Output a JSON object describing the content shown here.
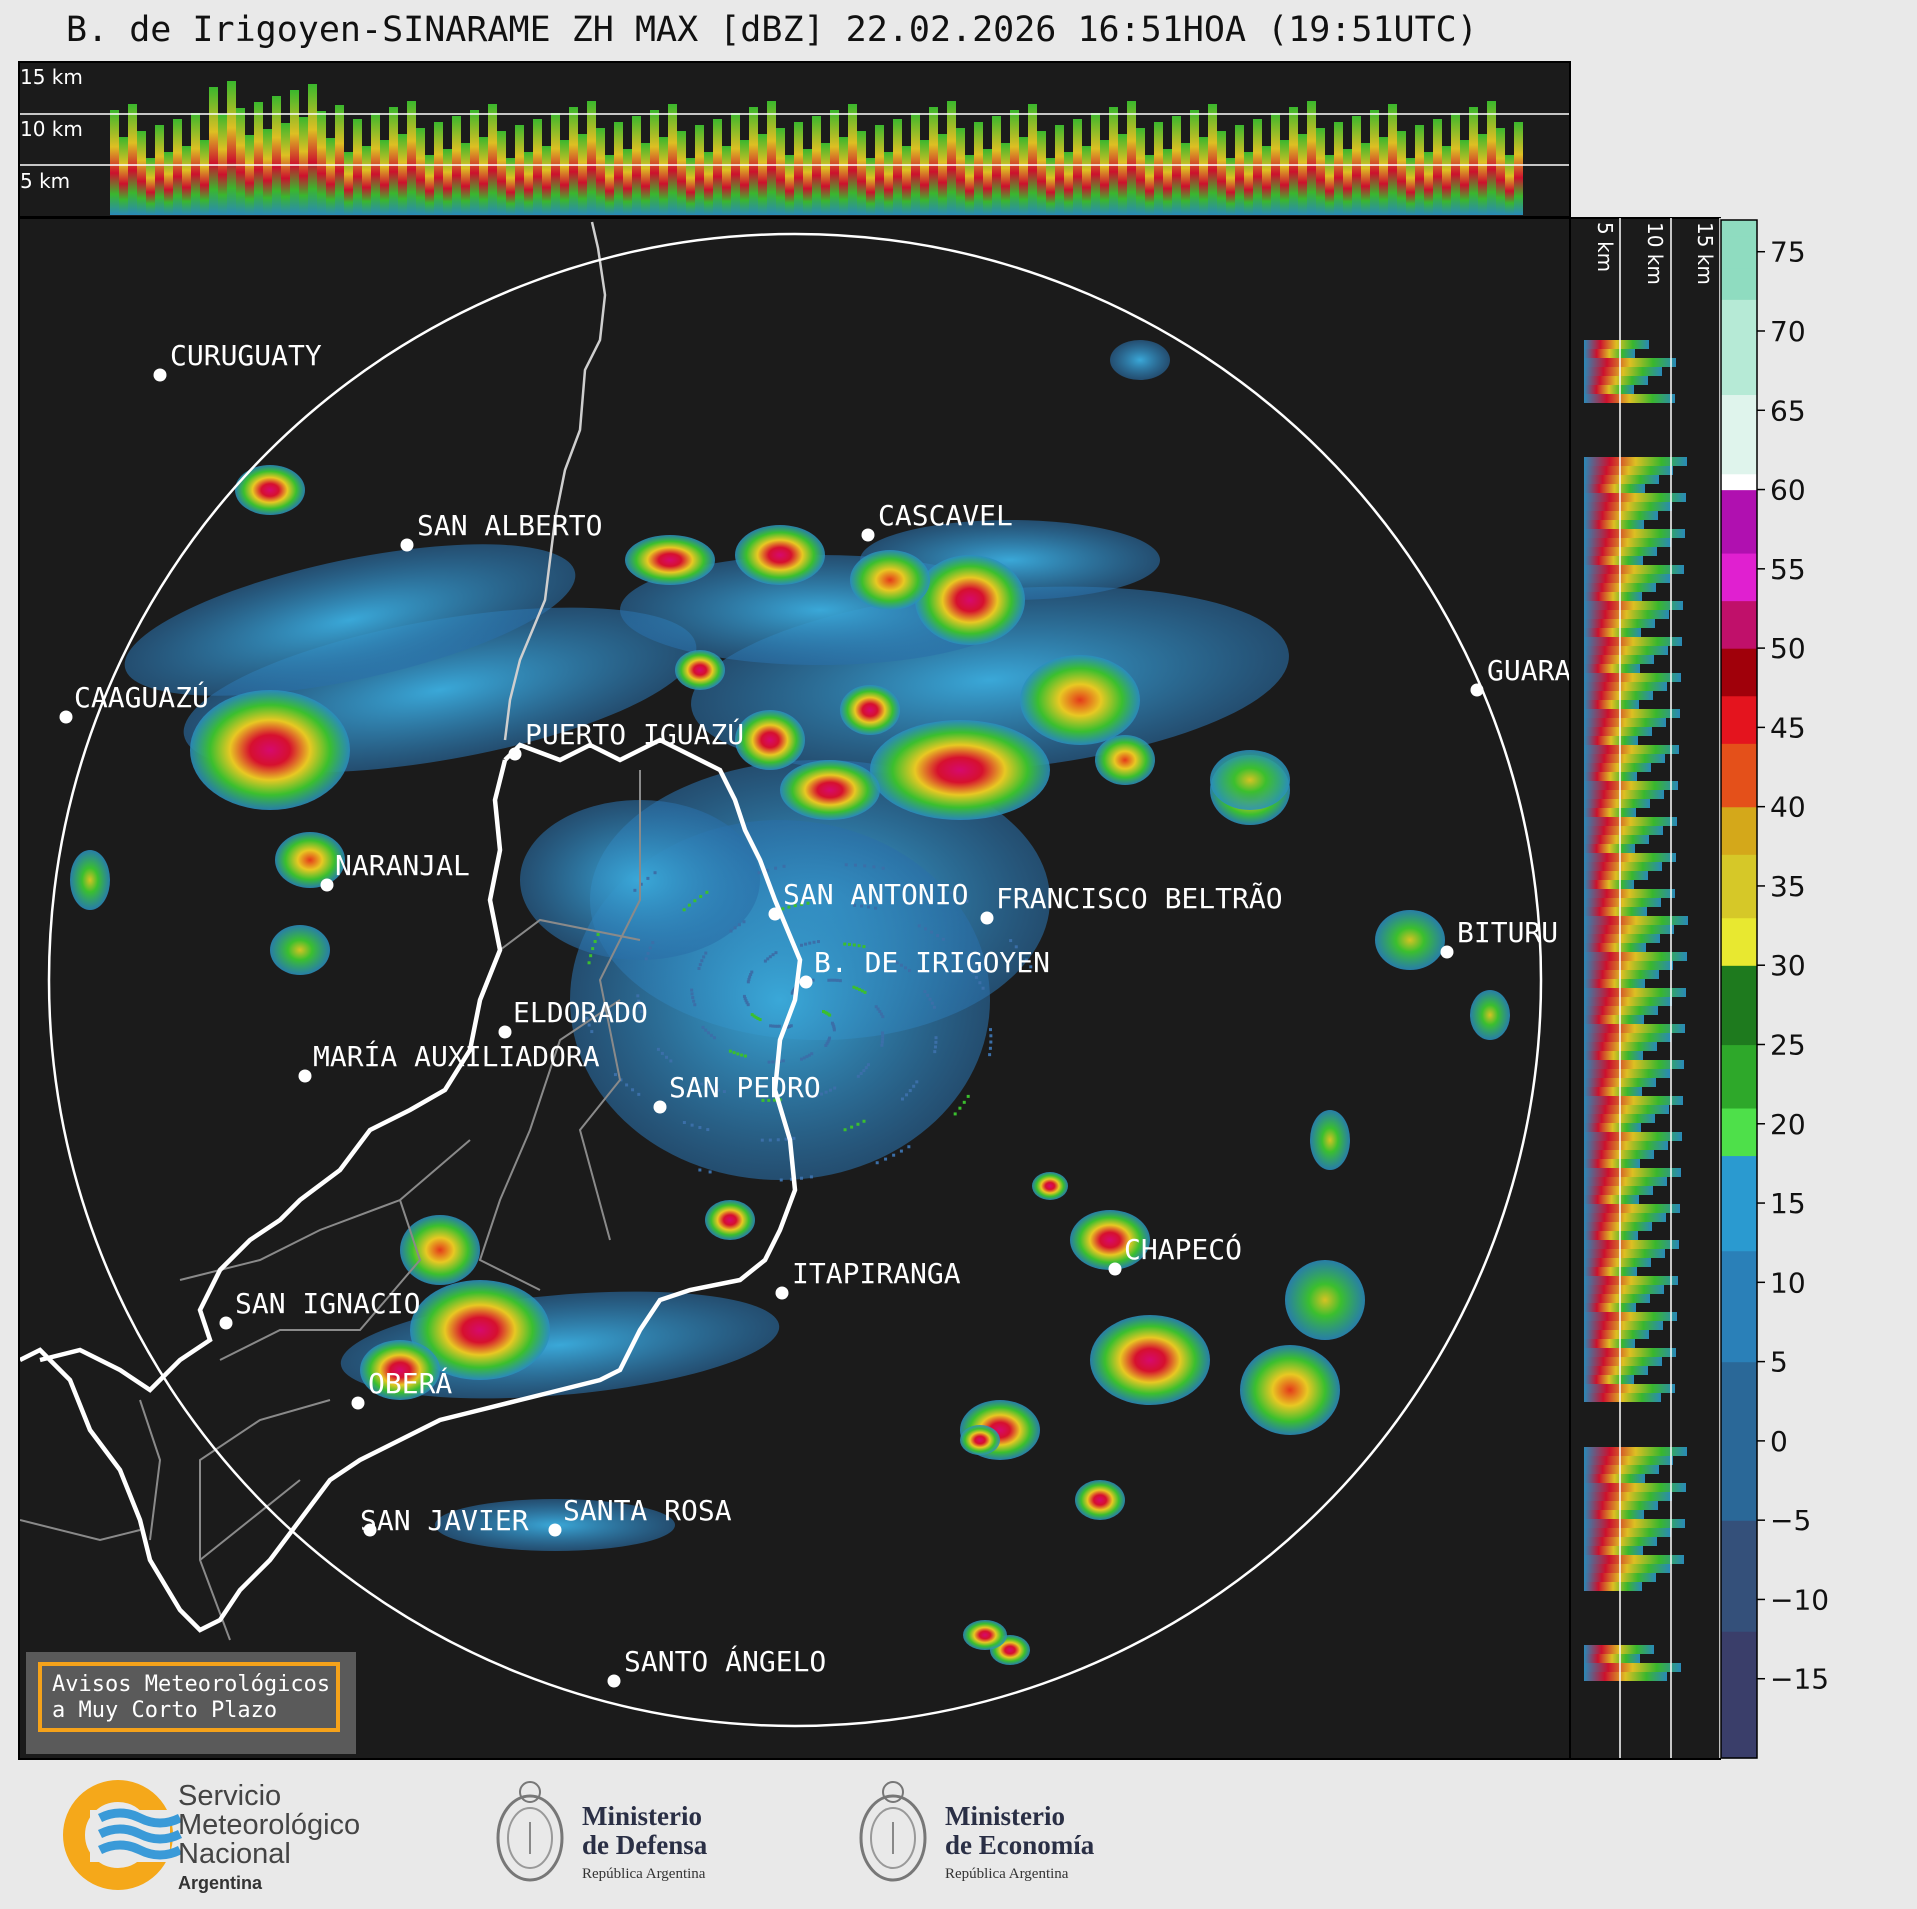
{
  "title": "B. de Irigoyen-SINARAME ZH MAX [dBZ] 22.02.2026 16:51HOA (19:51UTC)",
  "height_labels_top": [
    "15 km",
    "10 km",
    "5 km"
  ],
  "height_labels_side": [
    "5 km",
    "10 km",
    "15 km"
  ],
  "colorbar": {
    "ticks": [
      "75",
      "70",
      "65",
      "60",
      "55",
      "50",
      "45",
      "40",
      "35",
      "30",
      "25",
      "20",
      "15",
      "10",
      "5",
      "0",
      "−5",
      "−10",
      "−15"
    ],
    "min": -20,
    "max": 77
  },
  "cities": [
    {
      "name": "CURUGUATY"
    },
    {
      "name": "SAN ALBERTO"
    },
    {
      "name": "CASCAVEL"
    },
    {
      "name": "CAAGUAZÚ"
    },
    {
      "name": "PUERTO IGUAZÚ"
    },
    {
      "name": "GUARA"
    },
    {
      "name": "NARANJAL"
    },
    {
      "name": "SAN ANTONIO"
    },
    {
      "name": "FRANCISCO BELTRÃO"
    },
    {
      "name": "BITURU"
    },
    {
      "name": "B. DE IRIGOYEN"
    },
    {
      "name": "ELDORADO"
    },
    {
      "name": "MARÍA AUXILIADORA"
    },
    {
      "name": "SAN PEDRO"
    },
    {
      "name": "CHAPECÓ"
    },
    {
      "name": "ITAPIRANGA"
    },
    {
      "name": "SAN IGNACIO"
    },
    {
      "name": "OBERÁ"
    },
    {
      "name": "SAN JAVIER"
    },
    {
      "name": "SANTA ROSA"
    },
    {
      "name": "SANTO ÁNGELO"
    }
  ],
  "warning_box": {
    "line1": "Avisos Meteorológicos",
    "line2": "a Muy Corto Plazo"
  },
  "logos": {
    "smn": {
      "line1": "Servicio",
      "line2": "Meteorológico",
      "line3": "Nacional",
      "line4": "Argentina"
    },
    "defensa": {
      "line1": "Ministerio",
      "line2": "de Defensa",
      "line3": "República Argentina"
    },
    "economia": {
      "line1": "Ministerio",
      "line2": "de Economía",
      "line3": "República Argentina"
    }
  },
  "colors": {
    "accent": "#f5a21a",
    "background": "#1b1b1b"
  }
}
